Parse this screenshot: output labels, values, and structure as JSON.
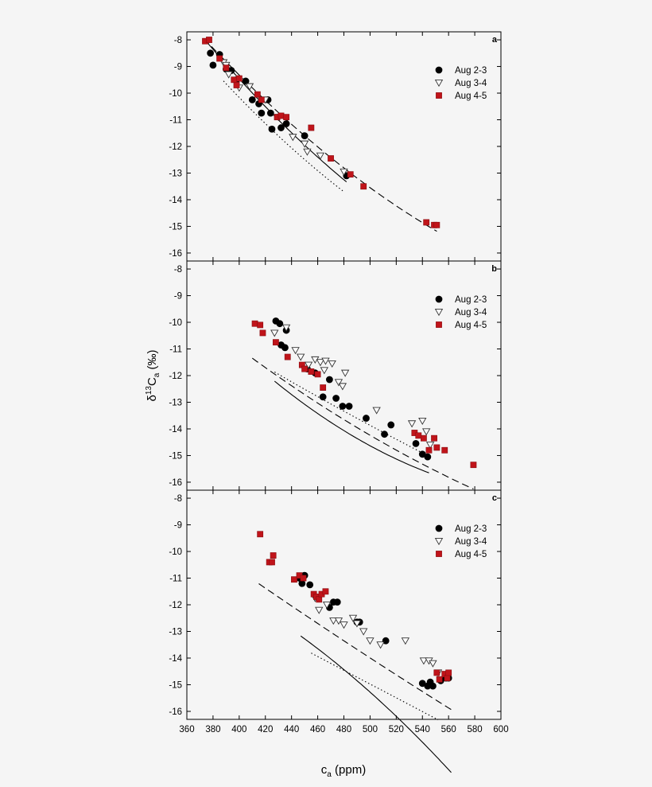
{
  "chart_data": [
    {
      "type": "scatter",
      "panel_label": "a",
      "xlim": [
        360,
        600
      ],
      "ylim": [
        -16.3,
        -7.7
      ],
      "xticks": [
        360,
        380,
        400,
        420,
        440,
        460,
        480,
        500,
        520,
        540,
        560,
        580,
        600
      ],
      "yticks": [
        -8,
        -9,
        -10,
        -11,
        -12,
        -13,
        -14,
        -15,
        -16
      ],
      "legend": [
        "Aug 2-3",
        "Aug 3-4",
        "Aug 4-5"
      ],
      "series": [
        {
          "name": "Aug 2-3",
          "marker": "circle",
          "color": "#000000",
          "points": [
            [
              378,
              -8.5
            ],
            [
              380,
              -8.95
            ],
            [
              385,
              -8.55
            ],
            [
              390,
              -9.1
            ],
            [
              394,
              -9.15
            ],
            [
              398,
              -9.5
            ],
            [
              405,
              -9.55
            ],
            [
              410,
              -10.25
            ],
            [
              415,
              -10.4
            ],
            [
              417,
              -10.75
            ],
            [
              422,
              -10.25
            ],
            [
              424,
              -10.75
            ],
            [
              425,
              -11.35
            ],
            [
              432,
              -11.3
            ],
            [
              436,
              -11.15
            ],
            [
              450,
              -11.6
            ],
            [
              482,
              -13.1
            ]
          ]
        },
        {
          "name": "Aug 3-4",
          "marker": "triangle-down",
          "color": "#ffffff",
          "points": [
            [
              388,
              -8.85
            ],
            [
              390,
              -8.95
            ],
            [
              392,
              -9.3
            ],
            [
              400,
              -9.8
            ],
            [
              408,
              -9.75
            ],
            [
              420,
              -10.25
            ],
            [
              430,
              -10.9
            ],
            [
              441,
              -11.65
            ],
            [
              450,
              -11.9
            ],
            [
              452,
              -12.2
            ],
            [
              462,
              -12.35
            ],
            [
              480,
              -12.95
            ]
          ]
        },
        {
          "name": "Aug 4-5",
          "marker": "square",
          "color": "#c0141a",
          "points": [
            [
              374,
              -8.05
            ],
            [
              377,
              -8.0
            ],
            [
              385,
              -8.7
            ],
            [
              390,
              -9.05
            ],
            [
              396,
              -9.5
            ],
            [
              398,
              -9.7
            ],
            [
              400,
              -9.45
            ],
            [
              414,
              -10.05
            ],
            [
              417,
              -10.25
            ],
            [
              429,
              -10.9
            ],
            [
              432,
              -10.85
            ],
            [
              436,
              -10.9
            ],
            [
              455,
              -11.3
            ],
            [
              470,
              -12.45
            ],
            [
              485,
              -13.05
            ],
            [
              495,
              -13.5
            ],
            [
              543,
              -14.85
            ],
            [
              549,
              -14.95
            ],
            [
              551,
              -14.95
            ]
          ]
        }
      ],
      "fits": [
        {
          "series": "Aug 2-3",
          "style": "solid",
          "x": [
            375,
            482
          ],
          "coef": [
            -8.07,
            -0.0578,
            8.05e-05
          ]
        },
        {
          "series": "Aug 4-5",
          "style": "dashed",
          "x": [
            373,
            551
          ],
          "coef": [
            -8.05,
            -0.0524,
            6.74e-05
          ]
        },
        {
          "series": "Aug 3-4",
          "style": "dotted",
          "x": [
            388,
            480
          ],
          "coef": [
            -8.85,
            -0.0545,
            7.9e-05
          ]
        }
      ]
    },
    {
      "type": "scatter",
      "panel_label": "b",
      "xlim": [
        360,
        600
      ],
      "ylim": [
        -16.3,
        -7.7
      ],
      "xticks": [
        360,
        380,
        400,
        420,
        440,
        460,
        480,
        500,
        520,
        540,
        560,
        580,
        600
      ],
      "yticks": [
        -8,
        -9,
        -10,
        -11,
        -12,
        -13,
        -14,
        -15,
        -16
      ],
      "ylabel": "δ13Ca (‰)",
      "legend": [
        "Aug 2-3",
        "Aug 3-4",
        "Aug 4-5"
      ],
      "series": [
        {
          "name": "Aug 2-3",
          "marker": "circle",
          "color": "#000000",
          "points": [
            [
              428,
              -9.95
            ],
            [
              431,
              -10.05
            ],
            [
              432,
              -10.85
            ],
            [
              435,
              -10.95
            ],
            [
              436,
              -10.3
            ],
            [
              452,
              -11.75
            ],
            [
              458,
              -11.9
            ],
            [
              464,
              -12.8
            ],
            [
              469,
              -12.15
            ],
            [
              474,
              -12.85
            ],
            [
              479,
              -13.15
            ],
            [
              484,
              -13.15
            ],
            [
              497,
              -13.6
            ],
            [
              511,
              -14.2
            ],
            [
              516,
              -13.85
            ],
            [
              535,
              -14.55
            ],
            [
              540,
              -14.95
            ],
            [
              544,
              -15.05
            ]
          ]
        },
        {
          "name": "Aug 3-4",
          "marker": "triangle-down",
          "color": "#ffffff",
          "points": [
            [
              427,
              -10.4
            ],
            [
              436,
              -10.2
            ],
            [
              443,
              -11.05
            ],
            [
              447,
              -11.3
            ],
            [
              453,
              -11.6
            ],
            [
              458,
              -11.4
            ],
            [
              462,
              -11.5
            ],
            [
              465,
              -11.8
            ],
            [
              466,
              -11.45
            ],
            [
              471,
              -11.55
            ],
            [
              476,
              -12.25
            ],
            [
              479,
              -12.4
            ],
            [
              481,
              -11.9
            ],
            [
              505,
              -13.3
            ],
            [
              532,
              -13.8
            ],
            [
              540,
              -13.7
            ],
            [
              543,
              -14.1
            ],
            [
              546,
              -14.6
            ]
          ]
        },
        {
          "name": "Aug 4-5",
          "marker": "square",
          "color": "#c0141a",
          "points": [
            [
              412,
              -10.05
            ],
            [
              416,
              -10.1
            ],
            [
              418,
              -10.4
            ],
            [
              428,
              -10.75
            ],
            [
              437,
              -11.3
            ],
            [
              448,
              -11.6
            ],
            [
              450,
              -11.75
            ],
            [
              455,
              -11.85
            ],
            [
              460,
              -11.95
            ],
            [
              464,
              -12.45
            ],
            [
              534,
              -14.15
            ],
            [
              537,
              -14.25
            ],
            [
              541,
              -14.35
            ],
            [
              545,
              -14.8
            ],
            [
              549,
              -14.35
            ],
            [
              551,
              -14.7
            ],
            [
              557,
              -14.8
            ],
            [
              579,
              -15.35
            ]
          ]
        }
      ],
      "fits": [
        {
          "series": "Aug 2-3",
          "style": "solid",
          "x": [
            427,
            545
          ],
          "coef": [
            -9.9,
            -0.0491,
            8.99e-05
          ]
        },
        {
          "series": "Aug 4-5",
          "style": "dashed",
          "x": [
            410,
            579
          ],
          "coef": [
            -10.05,
            -0.0384,
            3.91e-05
          ]
        },
        {
          "series": "Aug 3-4",
          "style": "dotted",
          "x": [
            427,
            546
          ],
          "coef": [
            -10.35,
            -0.0299,
            1.41e-05
          ]
        }
      ]
    },
    {
      "type": "scatter",
      "panel_label": "c",
      "xlim": [
        360,
        600
      ],
      "ylim": [
        -16.3,
        -7.7
      ],
      "xticks": [
        360,
        380,
        400,
        420,
        440,
        460,
        480,
        500,
        520,
        540,
        560,
        580,
        600
      ],
      "yticks": [
        -8,
        -9,
        -10,
        -11,
        -12,
        -13,
        -14,
        -15,
        -16
      ],
      "xlabel": "ca (ppm)",
      "legend": [
        "Aug 2-3",
        "Aug 3-4",
        "Aug 4-5"
      ],
      "series": [
        {
          "name": "Aug 2-3",
          "marker": "circle",
          "color": "#000000",
          "points": [
            [
              446,
              -11.0
            ],
            [
              448,
              -11.2
            ],
            [
              450,
              -10.9
            ],
            [
              454,
              -11.25
            ],
            [
              469,
              -12.1
            ],
            [
              472,
              -11.9
            ],
            [
              475,
              -11.9
            ],
            [
              490,
              -12.65
            ],
            [
              492,
              -12.65
            ],
            [
              512,
              -13.35
            ],
            [
              540,
              -14.95
            ],
            [
              544,
              -15.05
            ],
            [
              546,
              -14.9
            ],
            [
              548,
              -15.05
            ],
            [
              554,
              -14.85
            ],
            [
              558,
              -14.75
            ],
            [
              560,
              -14.75
            ]
          ]
        },
        {
          "name": "Aug 3-4",
          "marker": "triangle-down",
          "color": "#ffffff",
          "points": [
            [
              458,
              -11.75
            ],
            [
              461,
              -12.2
            ],
            [
              467,
              -12.0
            ],
            [
              472,
              -12.6
            ],
            [
              476,
              -12.6
            ],
            [
              480,
              -12.75
            ],
            [
              487,
              -12.5
            ],
            [
              490,
              -12.7
            ],
            [
              495,
              -13.0
            ],
            [
              500,
              -13.35
            ],
            [
              508,
              -13.5
            ],
            [
              527,
              -13.35
            ],
            [
              541,
              -14.1
            ],
            [
              545,
              -14.1
            ],
            [
              548,
              -14.2
            ],
            [
              552,
              -14.55
            ]
          ]
        },
        {
          "name": "Aug 4-5",
          "marker": "square",
          "color": "#c0141a",
          "points": [
            [
              416,
              -9.35
            ],
            [
              423,
              -10.4
            ],
            [
              425,
              -10.4
            ],
            [
              426,
              -10.15
            ],
            [
              442,
              -11.05
            ],
            [
              446,
              -10.9
            ],
            [
              449,
              -11.0
            ],
            [
              457,
              -11.6
            ],
            [
              459,
              -11.7
            ],
            [
              461,
              -11.8
            ],
            [
              463,
              -11.6
            ],
            [
              466,
              -11.5
            ],
            [
              551,
              -14.55
            ],
            [
              553,
              -14.8
            ],
            [
              557,
              -14.6
            ],
            [
              559,
              -14.75
            ],
            [
              560,
              -14.55
            ]
          ]
        }
      ],
      "fits": [
        {
          "series": "Aug 2-3",
          "style": "solid",
          "x": [
            447,
            562
          ],
          "coef": [
            -11.0,
            -0.0246,
            -7.7e-05
          ]
        },
        {
          "series": "Aug 4-5",
          "style": "dashed",
          "x": [
            415,
            562
          ],
          "coef": [
            -9.85,
            -0.0344,
            9.98e-06
          ]
        },
        {
          "series": "Aug 3-4",
          "style": "dotted",
          "x": [
            455,
            552
          ],
          "coef": [
            -11.75,
            -0.0258,
            0.0
          ]
        }
      ]
    }
  ],
  "x_axis_title": {
    "main": "c",
    "sub": "a",
    "unit": " (ppm)"
  },
  "y_axis_title": {
    "delta": "δ",
    "sup": "13",
    "main": "C",
    "sub": "a",
    "unit": " (‰)"
  }
}
